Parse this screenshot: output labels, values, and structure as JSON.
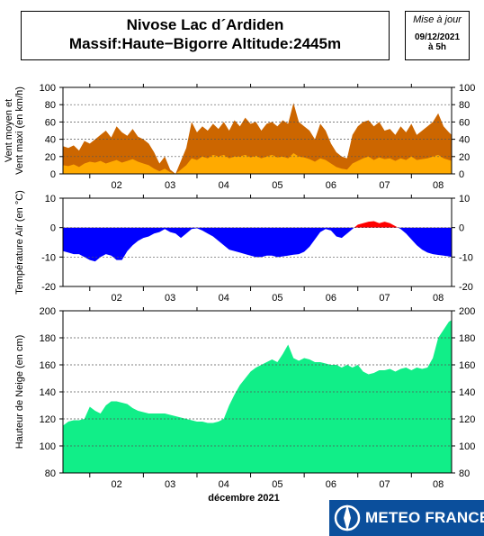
{
  "header": {
    "line1": "Nivose Lac d´Ardiden",
    "line2": "Massif:Haute−Bigorre Altitude:2445m"
  },
  "update": {
    "label": "Mise à jour",
    "date": "09/12/2021",
    "hour": "à 5h"
  },
  "logo": {
    "text": "METEO FRANCE"
  },
  "colors": {
    "wind_max": "#cc6600",
    "wind_mean": "#ffaa00",
    "temp_cold": "#0000ff",
    "temp_warm": "#ff0000",
    "snow": "#11ee88"
  },
  "chart_data": [
    {
      "type": "area",
      "ylabel": "Vent moyen et Vent maxi (en km/h)",
      "ylim": [
        0,
        100
      ],
      "yticks": [
        0,
        20,
        40,
        60,
        80,
        100
      ],
      "xlim": [
        1.5,
        8.75
      ],
      "xticks": [
        "02",
        "03",
        "04",
        "05",
        "06",
        "07",
        "08"
      ],
      "grid": true,
      "series": [
        {
          "key": "wind_max",
          "x": [
            1.5,
            1.6,
            1.7,
            1.8,
            1.9,
            2.0,
            2.1,
            2.2,
            2.3,
            2.4,
            2.5,
            2.6,
            2.7,
            2.8,
            2.9,
            3.0,
            3.1,
            3.2,
            3.3,
            3.4,
            3.5,
            3.6,
            3.7,
            3.8,
            3.9,
            4.0,
            4.1,
            4.2,
            4.3,
            4.4,
            4.5,
            4.6,
            4.7,
            4.8,
            4.9,
            5.0,
            5.1,
            5.2,
            5.3,
            5.4,
            5.5,
            5.6,
            5.7,
            5.8,
            5.9,
            6.0,
            6.1,
            6.2,
            6.3,
            6.4,
            6.5,
            6.6,
            6.7,
            6.8,
            6.9,
            7.0,
            7.1,
            7.2,
            7.3,
            7.4,
            7.5,
            7.6,
            7.7,
            7.8,
            7.9,
            8.0,
            8.1,
            8.2,
            8.3,
            8.4,
            8.5,
            8.6,
            8.7,
            8.75
          ],
          "values": [
            32,
            30,
            33,
            27,
            38,
            35,
            40,
            45,
            50,
            42,
            55,
            48,
            44,
            52,
            43,
            40,
            35,
            25,
            12,
            20,
            5,
            0,
            15,
            30,
            60,
            48,
            55,
            50,
            58,
            52,
            60,
            50,
            62,
            55,
            65,
            58,
            60,
            50,
            58,
            60,
            55,
            62,
            58,
            82,
            60,
            55,
            50,
            40,
            58,
            50,
            35,
            25,
            20,
            18,
            45,
            55,
            60,
            62,
            55,
            60,
            50,
            52,
            45,
            55,
            48,
            58,
            45,
            50,
            55,
            60,
            70,
            55,
            48,
            45
          ]
        },
        {
          "key": "wind_mean",
          "x": [
            1.5,
            1.6,
            1.7,
            1.8,
            1.9,
            2.0,
            2.1,
            2.2,
            2.3,
            2.4,
            2.5,
            2.6,
            2.7,
            2.8,
            2.9,
            3.0,
            3.1,
            3.2,
            3.3,
            3.4,
            3.5,
            3.6,
            3.7,
            3.8,
            3.9,
            4.0,
            4.1,
            4.2,
            4.3,
            4.4,
            4.5,
            4.6,
            4.7,
            4.8,
            4.9,
            5.0,
            5.1,
            5.2,
            5.3,
            5.4,
            5.5,
            5.6,
            5.7,
            5.8,
            5.9,
            6.0,
            6.1,
            6.2,
            6.3,
            6.4,
            6.5,
            6.6,
            6.7,
            6.8,
            6.9,
            7.0,
            7.1,
            7.2,
            7.3,
            7.4,
            7.5,
            7.6,
            7.7,
            7.8,
            7.9,
            8.0,
            8.1,
            8.2,
            8.3,
            8.4,
            8.5,
            8.6,
            8.7,
            8.75
          ],
          "values": [
            10,
            9,
            11,
            8,
            12,
            14,
            13,
            15,
            12,
            14,
            16,
            13,
            15,
            17,
            14,
            12,
            10,
            6,
            3,
            6,
            2,
            0,
            5,
            10,
            18,
            16,
            20,
            18,
            22,
            20,
            22,
            18,
            20,
            20,
            22,
            19,
            21,
            18,
            20,
            22,
            19,
            20,
            18,
            24,
            20,
            19,
            17,
            14,
            18,
            16,
            12,
            8,
            6,
            5,
            12,
            15,
            18,
            20,
            16,
            19,
            17,
            18,
            15,
            18,
            16,
            20,
            16,
            17,
            18,
            20,
            22,
            18,
            16,
            15
          ]
        }
      ]
    },
    {
      "type": "area",
      "ylabel": "Température Air (en °C)",
      "ylim": [
        -20,
        10
      ],
      "yticks": [
        -20,
        -10,
        0,
        10
      ],
      "xlim": [
        1.5,
        8.75
      ],
      "xticks": [
        "02",
        "03",
        "04",
        "05",
        "06",
        "07",
        "08"
      ],
      "grid": true,
      "series": [
        {
          "key": "temperature",
          "x": [
            1.5,
            1.6,
            1.7,
            1.8,
            1.9,
            2.0,
            2.1,
            2.2,
            2.3,
            2.4,
            2.5,
            2.6,
            2.7,
            2.8,
            2.9,
            3.0,
            3.1,
            3.2,
            3.3,
            3.4,
            3.5,
            3.6,
            3.7,
            3.8,
            3.9,
            4.0,
            4.1,
            4.2,
            4.3,
            4.4,
            4.5,
            4.6,
            4.7,
            4.8,
            4.9,
            5.0,
            5.1,
            5.2,
            5.3,
            5.4,
            5.5,
            5.6,
            5.7,
            5.8,
            5.9,
            6.0,
            6.1,
            6.2,
            6.3,
            6.4,
            6.5,
            6.6,
            6.7,
            6.8,
            6.9,
            7.0,
            7.1,
            7.2,
            7.3,
            7.4,
            7.5,
            7.6,
            7.7,
            7.8,
            7.9,
            8.0,
            8.1,
            8.2,
            8.3,
            8.4,
            8.5,
            8.6,
            8.7,
            8.75
          ],
          "values": [
            -8,
            -8.5,
            -9,
            -9,
            -10,
            -11,
            -11.5,
            -10,
            -9,
            -9.5,
            -11,
            -11,
            -8,
            -6,
            -4.5,
            -3.5,
            -3,
            -2,
            -1.5,
            -0.5,
            -1.5,
            -2,
            -3.5,
            -2,
            -0.5,
            -0.2,
            -1,
            -2,
            -3,
            -4.5,
            -6,
            -7.5,
            -8,
            -8.5,
            -9,
            -9.5,
            -10,
            -10,
            -9.5,
            -9.5,
            -10,
            -9.8,
            -9.5,
            -9.2,
            -9,
            -8.2,
            -6.5,
            -4,
            -1.5,
            -0.5,
            -1,
            -3,
            -3.5,
            -2,
            -0.5,
            1,
            1.5,
            2,
            2.2,
            1.5,
            2,
            1.5,
            0.5,
            -0.5,
            -2,
            -4,
            -6,
            -7.5,
            -8.5,
            -9,
            -9.3,
            -9.5,
            -9.8,
            -10
          ]
        }
      ]
    },
    {
      "type": "area",
      "ylabel": "Hauteur de Neige (en cm)",
      "xlabel": "décembre 2021",
      "ylim": [
        80,
        200
      ],
      "yticks": [
        80,
        100,
        120,
        140,
        160,
        180,
        200
      ],
      "xlim": [
        1.5,
        8.75
      ],
      "xticks": [
        "02",
        "03",
        "04",
        "05",
        "06",
        "07",
        "08"
      ],
      "grid": true,
      "series": [
        {
          "key": "snow_depth",
          "x": [
            1.5,
            1.6,
            1.7,
            1.8,
            1.9,
            2.0,
            2.1,
            2.2,
            2.3,
            2.4,
            2.5,
            2.6,
            2.7,
            2.8,
            2.9,
            3.0,
            3.1,
            3.2,
            3.3,
            3.4,
            3.5,
            3.6,
            3.7,
            3.8,
            3.9,
            4.0,
            4.1,
            4.2,
            4.3,
            4.4,
            4.5,
            4.6,
            4.7,
            4.8,
            4.9,
            5.0,
            5.1,
            5.2,
            5.3,
            5.4,
            5.5,
            5.6,
            5.7,
            5.8,
            5.9,
            6.0,
            6.1,
            6.2,
            6.3,
            6.4,
            6.5,
            6.6,
            6.7,
            6.8,
            6.9,
            7.0,
            7.1,
            7.2,
            7.3,
            7.4,
            7.5,
            7.6,
            7.7,
            7.8,
            7.9,
            8.0,
            8.1,
            8.2,
            8.3,
            8.4,
            8.5,
            8.6,
            8.7,
            8.75
          ],
          "values": [
            115,
            118,
            119,
            119,
            120,
            129,
            126,
            124,
            130,
            133,
            133,
            132,
            131,
            128,
            126,
            125,
            124,
            124,
            124,
            124,
            123,
            122,
            121,
            120,
            119,
            118,
            118,
            117,
            117,
            118,
            120,
            130,
            138,
            145,
            150,
            155,
            158,
            160,
            162,
            164,
            162,
            168,
            175,
            165,
            163,
            165,
            164,
            162,
            162,
            161,
            160,
            160,
            158,
            160,
            158,
            160,
            155,
            153,
            154,
            156,
            156,
            157,
            155,
            157,
            158,
            156,
            158,
            157,
            158,
            165,
            180,
            186,
            192,
            193
          ]
        }
      ]
    }
  ]
}
